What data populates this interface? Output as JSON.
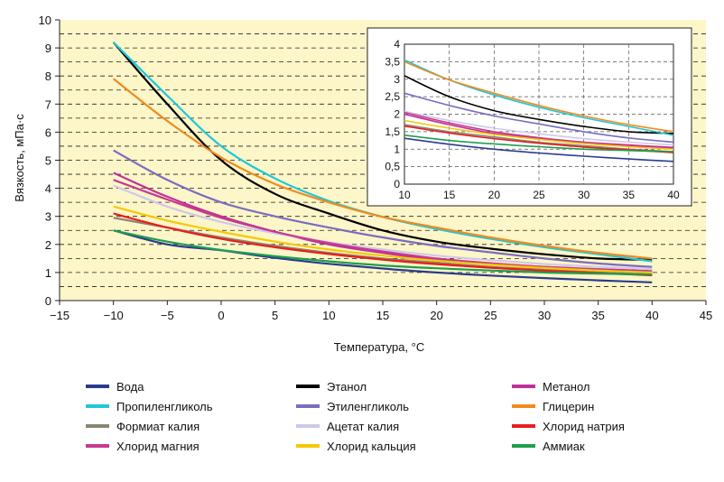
{
  "chart_data": {
    "type": "line",
    "main": {
      "xlabel": "Температура, °С",
      "ylabel": "Вязкость, мПа·с",
      "xlim": [
        -15,
        45
      ],
      "ylim": [
        0,
        10
      ],
      "x_ticks": [
        "−15",
        "−10",
        "−5",
        "0",
        "5",
        "10",
        "15",
        "20",
        "25",
        "30",
        "35",
        "40",
        "45"
      ],
      "y_ticks": [
        "0",
        "1",
        "2",
        "3",
        "4",
        "5",
        "6",
        "7",
        "8",
        "9",
        "10"
      ],
      "background": "#fdf6c8",
      "grid": true
    },
    "inset": {
      "xlim": [
        10,
        40
      ],
      "ylim": [
        0,
        4
      ],
      "x_ticks": [
        "10",
        "15",
        "20",
        "25",
        "30",
        "35",
        "40"
      ],
      "y_ticks": [
        "0",
        "0,5",
        "1",
        "1,5",
        "2",
        "2,5",
        "3",
        "3,5",
        "4"
      ],
      "background": "#ffffff",
      "grid": true
    },
    "x": [
      -10,
      -5,
      0,
      5,
      10,
      15,
      20,
      25,
      30,
      35,
      40
    ],
    "series": [
      {
        "name": "Вода",
        "color": "#2a3b8f",
        "values": [
          2.5,
          2.0,
          1.79,
          1.52,
          1.31,
          1.14,
          1.0,
          0.89,
          0.8,
          0.72,
          0.65
        ]
      },
      {
        "name": "Этанол",
        "color": "#000000",
        "values": [
          9.2,
          7.0,
          5.0,
          3.8,
          3.1,
          2.5,
          2.1,
          1.85,
          1.65,
          1.5,
          1.45
        ]
      },
      {
        "name": "Метанол",
        "color": "#c0309a",
        "values": [
          4.55,
          3.7,
          3.0,
          2.45,
          2.0,
          1.7,
          1.45,
          1.3,
          1.2,
          1.12,
          1.05
        ]
      },
      {
        "name": "Пропиленгликоль",
        "color": "#1ec8d8",
        "values": [
          9.2,
          7.3,
          5.5,
          4.35,
          3.55,
          2.98,
          2.55,
          2.2,
          1.9,
          1.65,
          1.4
        ]
      },
      {
        "name": "Этиленгликоль",
        "color": "#7a6cc0",
        "values": [
          5.35,
          4.3,
          3.5,
          3.0,
          2.6,
          2.25,
          1.95,
          1.72,
          1.5,
          1.32,
          1.2
        ]
      },
      {
        "name": "Глицерин",
        "color": "#f08a1e",
        "values": [
          7.9,
          6.4,
          5.1,
          4.15,
          3.5,
          2.98,
          2.6,
          2.25,
          1.95,
          1.7,
          1.5
        ]
      },
      {
        "name": "Формиат калия",
        "color": "#8a8570",
        "values": [
          2.95,
          2.6,
          2.25,
          1.95,
          1.7,
          1.5,
          1.35,
          1.2,
          1.1,
          1.0,
          0.93
        ]
      },
      {
        "name": "Ацетат калия",
        "color": "#cfc8ea",
        "values": [
          4.1,
          3.35,
          2.8,
          2.4,
          2.08,
          1.82,
          1.6,
          1.44,
          1.3,
          1.2,
          1.12
        ]
      },
      {
        "name": "Хлорид натрия",
        "color": "#e81e1e",
        "values": [
          3.1,
          2.6,
          2.2,
          1.9,
          1.66,
          1.46,
          1.3,
          1.17,
          1.06,
          0.98,
          0.9
        ]
      },
      {
        "name": "Хлорид магния",
        "color": "#c6398e",
        "values": [
          4.3,
          3.6,
          2.95,
          2.45,
          2.05,
          1.75,
          1.5,
          1.33,
          1.2,
          1.1,
          1.02
        ]
      },
      {
        "name": "Хлорид кальция",
        "color": "#f5c800",
        "values": [
          3.35,
          2.85,
          2.45,
          2.1,
          1.82,
          1.6,
          1.42,
          1.28,
          1.16,
          1.07,
          1.0
        ]
      },
      {
        "name": "Аммиак",
        "color": "#1f9e4f",
        "values": [
          2.5,
          2.1,
          1.8,
          1.58,
          1.4,
          1.25,
          1.15,
          1.07,
          1.0,
          0.96,
          0.93
        ]
      }
    ]
  },
  "legend": {
    "columns": [
      [
        "Вода",
        "Пропиленгликоль",
        "Формиат калия",
        "Хлорид магния"
      ],
      [
        "Этанол",
        "Этиленгликоль",
        "Ацетат калия",
        "Хлорид кальция"
      ],
      [
        "Метанол",
        "Глицерин",
        "Хлорид натрия",
        "Аммиак"
      ]
    ]
  }
}
